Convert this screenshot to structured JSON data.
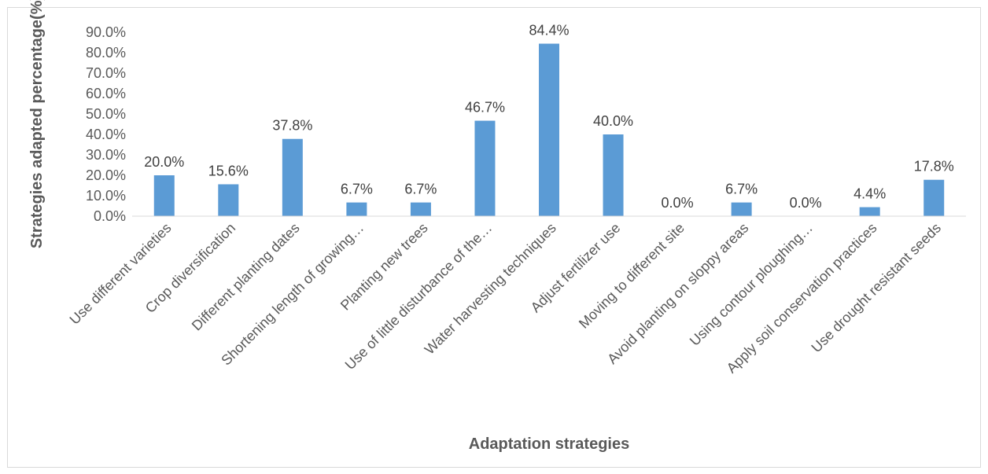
{
  "chart_data": {
    "type": "bar",
    "title": "",
    "xlabel": "Adaptation strategies",
    "ylabel": "Strategies adapted percentage(%)",
    "categories": [
      "Use different varieties",
      "Crop diversification",
      "Different planting dates",
      "Shortening length of growing…",
      "Planting new trees",
      "Use of little disturbance of the…",
      "Water harvesting techniques",
      "Adjust fertilizer use",
      "Moving to different site",
      "Avoid planting on sloppy areas",
      "Using contour ploughing…",
      "Apply soil conservation practices",
      "Use drought resistant seeds"
    ],
    "values": [
      20.0,
      15.6,
      37.8,
      6.7,
      6.7,
      46.7,
      84.4,
      40.0,
      0.0,
      6.7,
      0.0,
      4.4,
      17.8
    ],
    "data_labels": [
      "20.0%",
      "15.6%",
      "37.8%",
      "6.7%",
      "6.7%",
      "46.7%",
      "84.4%",
      "40.0%",
      "0.0%",
      "6.7%",
      "0.0%",
      "4.4%",
      "17.8%"
    ],
    "yticks": [
      "0.0%",
      "10.0%",
      "20.0%",
      "30.0%",
      "40.0%",
      "50.0%",
      "60.0%",
      "70.0%",
      "80.0%",
      "90.0%"
    ],
    "ylim": [
      0,
      90
    ],
    "grid": false,
    "legend": "none",
    "bar_color": "#5b9bd5"
  }
}
